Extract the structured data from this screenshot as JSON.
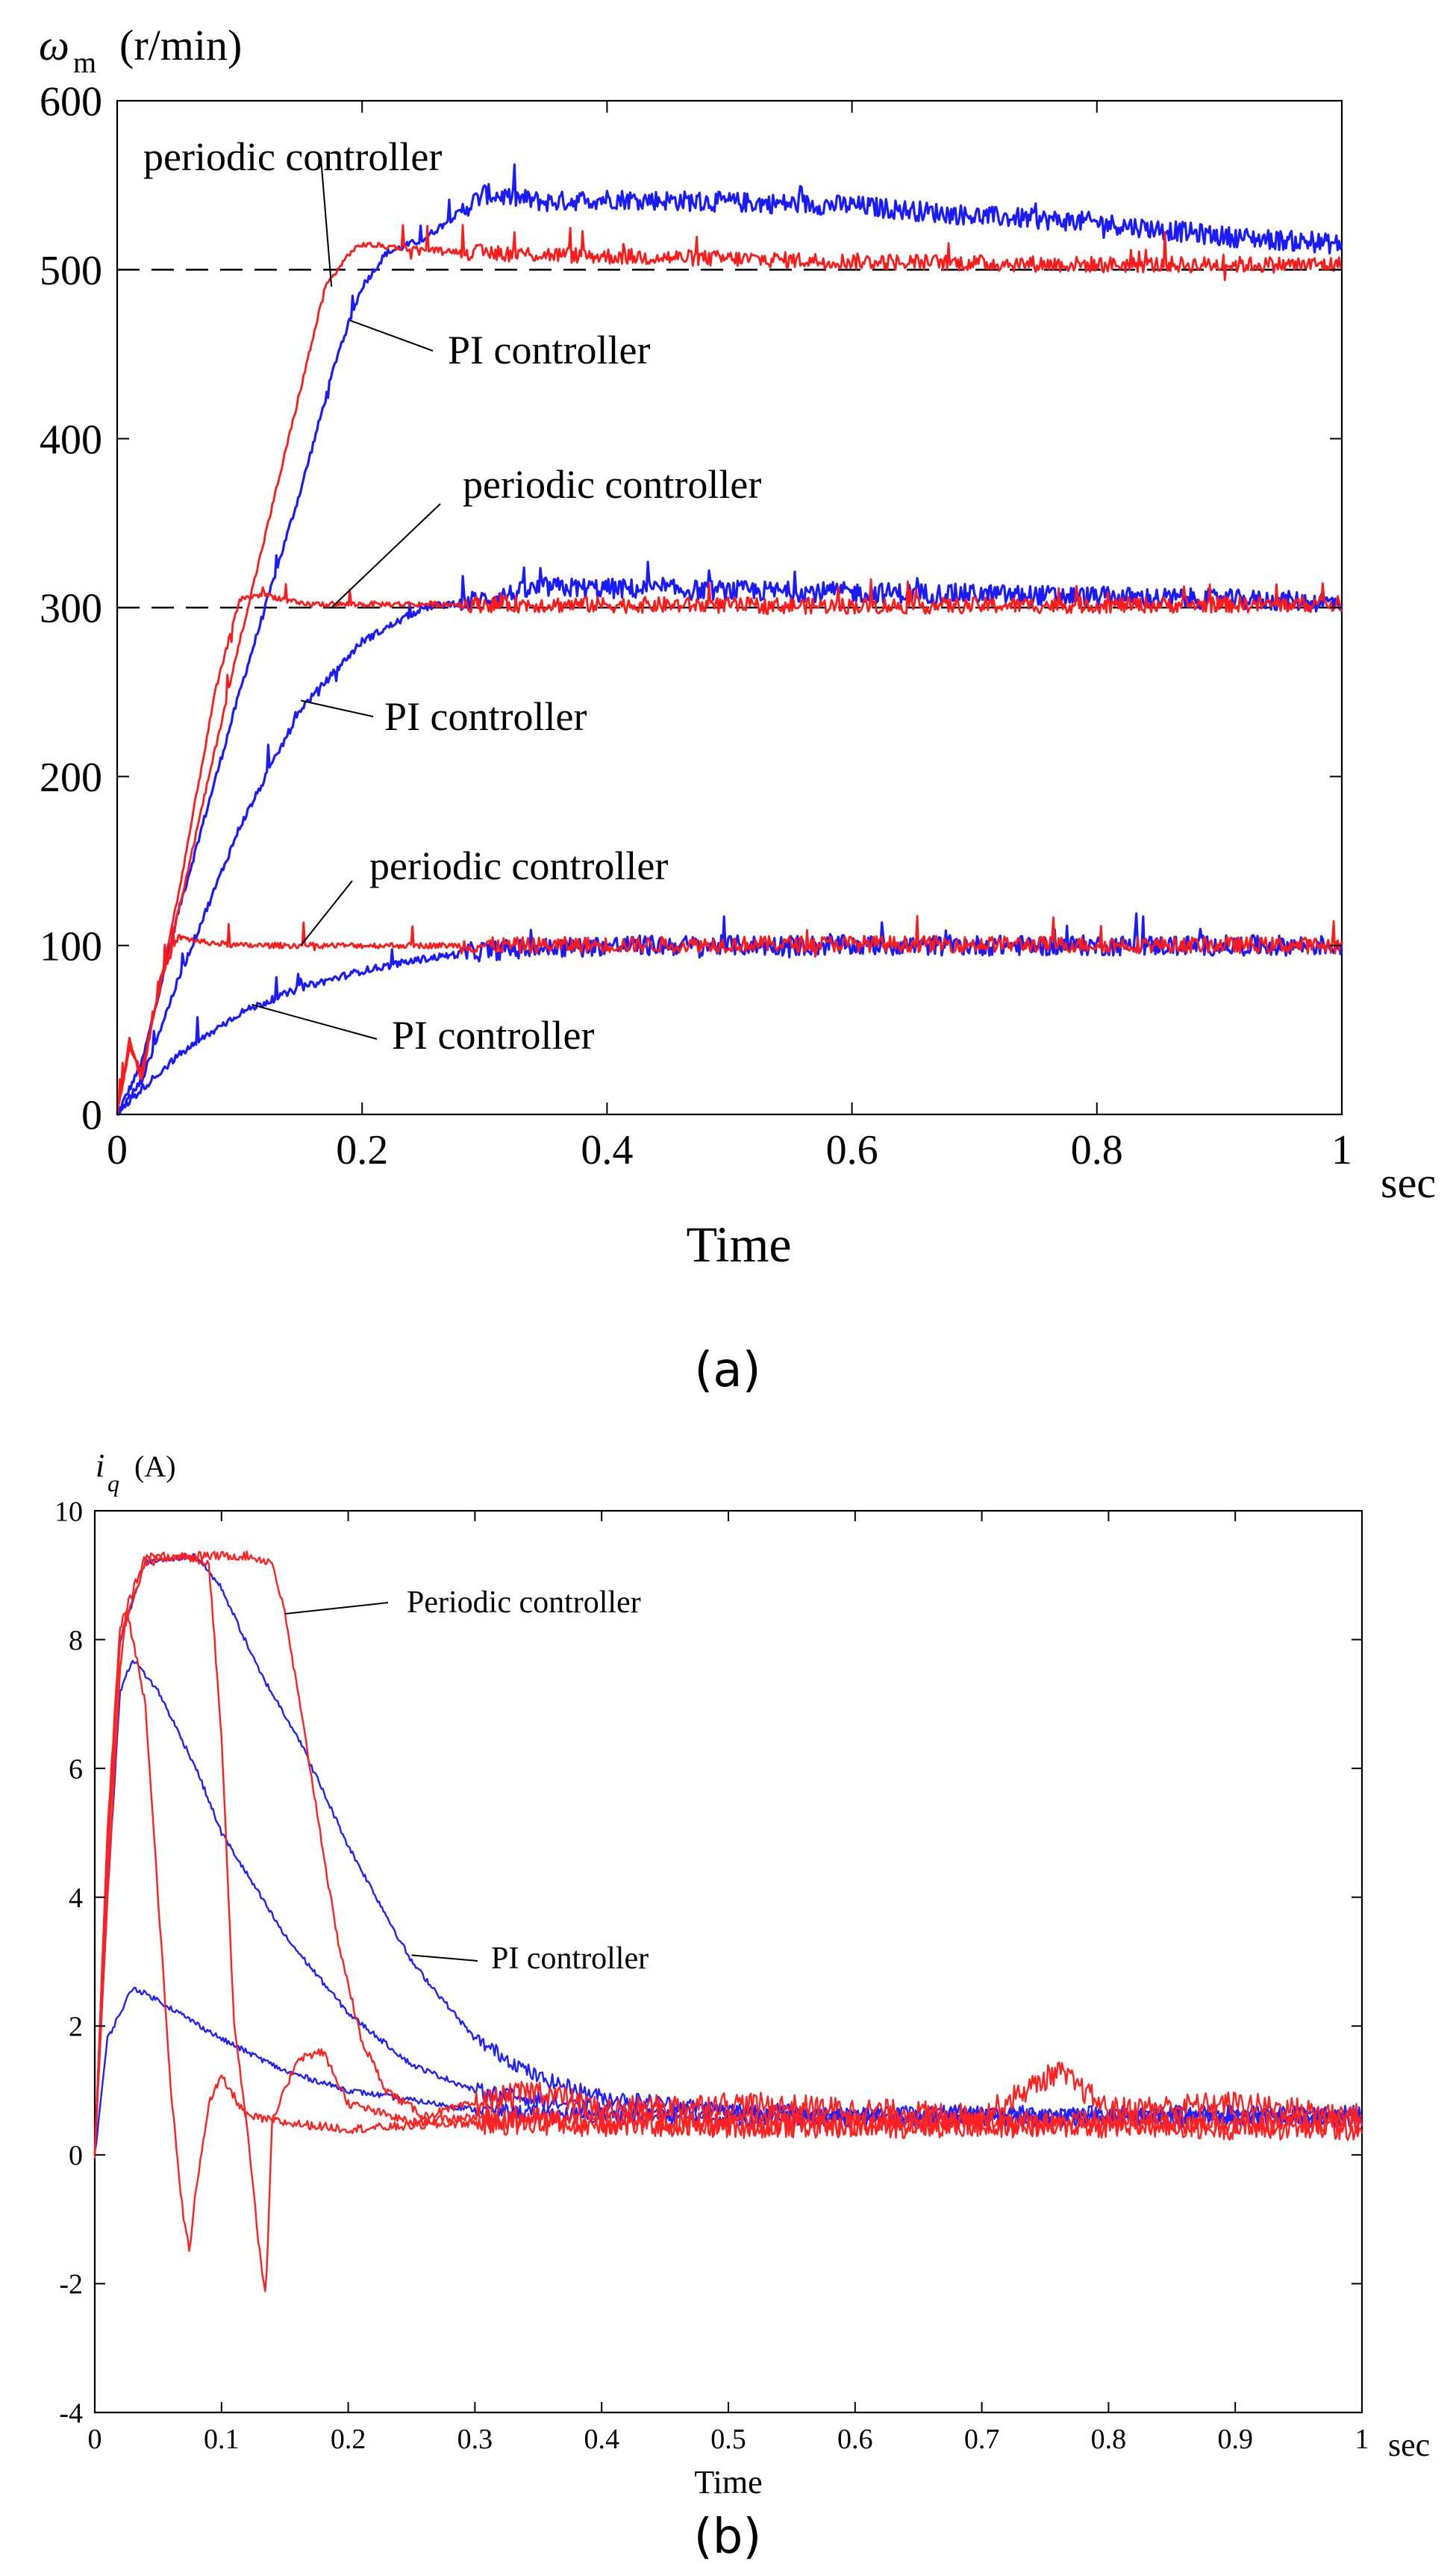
{
  "chart_data": [
    {
      "type": "line",
      "panel_label": "(a)",
      "ylabel_symbol": "ω",
      "ylabel_sub": "m",
      "ylabel_unit": "(r/min)",
      "xlabel": "Time",
      "x_unit": "sec",
      "xlim": [
        0,
        1
      ],
      "ylim": [
        0,
        600
      ],
      "xticks": [
        0,
        0.2,
        0.4,
        0.6,
        0.8,
        1
      ],
      "xtick_labels": [
        "0",
        "0.2",
        "0.4",
        "0.6",
        "0.8",
        "1"
      ],
      "yticks": [
        0,
        100,
        200,
        300,
        400,
        500,
        600
      ],
      "ytick_labels": [
        "0",
        "100",
        "200",
        "300",
        "400",
        "500",
        "600"
      ],
      "reference_levels": [
        500,
        300
      ],
      "series": [
        {
          "name": "PI controller (500 r/min)",
          "color": "#1a1aff",
          "points": [
            [
              0,
              0
            ],
            [
              0.02,
              30
            ],
            [
              0.05,
              120
            ],
            [
              0.1,
              250
            ],
            [
              0.15,
              370
            ],
            [
              0.18,
              450
            ],
            [
              0.2,
              490
            ],
            [
              0.22,
              510
            ],
            [
              0.25,
              518
            ],
            [
              0.3,
              545
            ],
            [
              0.35,
              540
            ],
            [
              0.4,
              542
            ],
            [
              0.5,
              540
            ],
            [
              0.6,
              538
            ],
            [
              0.7,
              532
            ],
            [
              0.8,
              528
            ],
            [
              0.9,
              520
            ],
            [
              1.0,
              515
            ]
          ]
        },
        {
          "name": "periodic controller (500 r/min)",
          "color": "#ff1a1a",
          "points": [
            [
              0,
              0
            ],
            [
              0.01,
              40
            ],
            [
              0.02,
              25
            ],
            [
              0.03,
              60
            ],
            [
              0.05,
              120
            ],
            [
              0.1,
              280
            ],
            [
              0.15,
              430
            ],
            [
              0.17,
              490
            ],
            [
              0.19,
              510
            ],
            [
              0.2,
              515
            ],
            [
              0.25,
              512
            ],
            [
              0.3,
              510
            ],
            [
              0.4,
              508
            ],
            [
              0.6,
              505
            ],
            [
              0.8,
              503
            ],
            [
              1.0,
              503
            ]
          ]
        },
        {
          "name": "PI controller (300 r/min)",
          "color": "#1a1aff",
          "points": [
            [
              0,
              0
            ],
            [
              0.02,
              20
            ],
            [
              0.05,
              80
            ],
            [
              0.1,
              170
            ],
            [
              0.15,
              240
            ],
            [
              0.2,
              280
            ],
            [
              0.25,
              300
            ],
            [
              0.3,
              305
            ],
            [
              0.35,
              312
            ],
            [
              0.5,
              310
            ],
            [
              0.7,
              308
            ],
            [
              0.9,
              305
            ],
            [
              1.0,
              303
            ]
          ]
        },
        {
          "name": "periodic controller (300 r/min)",
          "color": "#ff1a1a",
          "points": [
            [
              0,
              0
            ],
            [
              0.01,
              40
            ],
            [
              0.02,
              25
            ],
            [
              0.05,
              130
            ],
            [
              0.08,
              250
            ],
            [
              0.1,
              305
            ],
            [
              0.12,
              308
            ],
            [
              0.15,
              302
            ],
            [
              0.3,
              302
            ],
            [
              0.6,
              301
            ],
            [
              1.0,
              302
            ]
          ]
        },
        {
          "name": "PI controller (100 r/min)",
          "color": "#1a1aff",
          "points": [
            [
              0,
              0
            ],
            [
              0.02,
              15
            ],
            [
              0.05,
              35
            ],
            [
              0.1,
              60
            ],
            [
              0.15,
              75
            ],
            [
              0.2,
              85
            ],
            [
              0.25,
              92
            ],
            [
              0.3,
              97
            ],
            [
              0.4,
              100
            ],
            [
              0.6,
              100
            ],
            [
              1.0,
              100
            ]
          ]
        },
        {
          "name": "periodic controller (100 r/min)",
          "color": "#ff1a1a",
          "points": [
            [
              0,
              0
            ],
            [
              0.01,
              45
            ],
            [
              0.02,
              20
            ],
            [
              0.035,
              80
            ],
            [
              0.05,
              105
            ],
            [
              0.07,
              102
            ],
            [
              0.1,
              100
            ],
            [
              0.3,
              100
            ],
            [
              0.6,
              101
            ],
            [
              1.0,
              100
            ]
          ]
        }
      ],
      "annotations": [
        {
          "text": "periodic controller",
          "target": [
            0.175,
            490
          ]
        },
        {
          "text": "PI controller",
          "target": [
            0.19,
            470
          ]
        },
        {
          "text": "periodic controller",
          "target": [
            0.175,
            300
          ]
        },
        {
          "text": "PI controller",
          "target": [
            0.15,
            245
          ]
        },
        {
          "text": "periodic controller",
          "target": [
            0.15,
            100
          ]
        },
        {
          "text": "PI controller",
          "target": [
            0.11,
            65
          ]
        }
      ]
    },
    {
      "type": "line",
      "panel_label": "(b)",
      "ylabel_symbol": "i",
      "ylabel_sub": "q",
      "ylabel_unit": "(A)",
      "xlabel": "Time",
      "x_unit": "sec",
      "xlim": [
        0,
        1
      ],
      "ylim": [
        -4,
        10
      ],
      "xticks": [
        0,
        0.1,
        0.2,
        0.3,
        0.4,
        0.5,
        0.6,
        0.7,
        0.8,
        0.9,
        1
      ],
      "xtick_labels": [
        "0",
        "0.1",
        "0.2",
        "0.3",
        "0.4",
        "0.5",
        "0.6",
        "0.7",
        "0.8",
        "0.9",
        "1"
      ],
      "yticks": [
        -4,
        -2,
        0,
        2,
        4,
        6,
        8,
        10
      ],
      "ytick_labels": [
        "-4",
        "-2",
        "0",
        "2",
        "4",
        "6",
        "8",
        "10"
      ],
      "series": [
        {
          "name": "PI controller (500 r/min)",
          "color": "#2020ff",
          "points": [
            [
              0,
              0
            ],
            [
              0.01,
              5
            ],
            [
              0.02,
              8
            ],
            [
              0.04,
              9.2
            ],
            [
              0.08,
              9.3
            ],
            [
              0.1,
              8.8
            ],
            [
              0.13,
              7.5
            ],
            [
              0.16,
              6.5
            ],
            [
              0.2,
              4.8
            ],
            [
              0.25,
              3
            ],
            [
              0.3,
              1.8
            ],
            [
              0.35,
              1.2
            ],
            [
              0.4,
              0.9
            ],
            [
              0.5,
              0.7
            ],
            [
              0.6,
              0.65
            ],
            [
              0.8,
              0.65
            ],
            [
              1.0,
              0.65
            ]
          ]
        },
        {
          "name": "PI controller (300 r/min)",
          "color": "#2020ff",
          "points": [
            [
              0,
              0
            ],
            [
              0.01,
              4
            ],
            [
              0.02,
              7.2
            ],
            [
              0.03,
              7.7
            ],
            [
              0.05,
              7.2
            ],
            [
              0.08,
              6
            ],
            [
              0.1,
              5
            ],
            [
              0.15,
              3.4
            ],
            [
              0.2,
              2.2
            ],
            [
              0.25,
              1.4
            ],
            [
              0.3,
              1
            ],
            [
              0.4,
              0.7
            ],
            [
              0.6,
              0.6
            ],
            [
              1.0,
              0.6
            ]
          ]
        },
        {
          "name": "PI controller (100 r/min)",
          "color": "#2020ff",
          "points": [
            [
              0,
              0
            ],
            [
              0.01,
              1.8
            ],
            [
              0.03,
              2.6
            ],
            [
              0.05,
              2.4
            ],
            [
              0.1,
              1.8
            ],
            [
              0.15,
              1.3
            ],
            [
              0.2,
              1
            ],
            [
              0.3,
              0.7
            ],
            [
              0.4,
              0.6
            ],
            [
              0.6,
              0.55
            ],
            [
              1.0,
              0.55
            ]
          ]
        },
        {
          "name": "Periodic controller (500 r/min)",
          "color": "#ff2020",
          "points": [
            [
              0,
              0
            ],
            [
              0.01,
              5
            ],
            [
              0.02,
              8.2
            ],
            [
              0.04,
              9.3
            ],
            [
              0.08,
              9.3
            ],
            [
              0.12,
              9.3
            ],
            [
              0.14,
              9.2
            ],
            [
              0.15,
              8.4
            ],
            [
              0.17,
              6
            ],
            [
              0.19,
              3.5
            ],
            [
              0.21,
              1.8
            ],
            [
              0.23,
              1
            ],
            [
              0.26,
              0.6
            ],
            [
              0.3,
              0.8
            ],
            [
              0.35,
              1
            ],
            [
              0.4,
              0.7
            ],
            [
              0.5,
              0.8
            ],
            [
              0.6,
              0.7
            ],
            [
              0.7,
              0.6
            ],
            [
              0.76,
              1.3
            ],
            [
              0.8,
              0.7
            ],
            [
              0.9,
              0.8
            ],
            [
              1.0,
              0.6
            ]
          ]
        },
        {
          "name": "Periodic controller (300 r/min)",
          "color": "#ff2020",
          "points": [
            [
              0,
              0
            ],
            [
              0.01,
              4.5
            ],
            [
              0.02,
              8
            ],
            [
              0.04,
              9.2
            ],
            [
              0.07,
              9.3
            ],
            [
              0.09,
              9.2
            ],
            [
              0.1,
              6.5
            ],
            [
              0.11,
              2
            ],
            [
              0.12,
              0.5
            ],
            [
              0.13,
              -1.5
            ],
            [
              0.135,
              -2.2
            ],
            [
              0.14,
              0.5
            ],
            [
              0.16,
              1.5
            ],
            [
              0.18,
              1.6
            ],
            [
              0.2,
              0.8
            ],
            [
              0.25,
              0.5
            ],
            [
              0.3,
              0.6
            ],
            [
              0.4,
              0.5
            ],
            [
              0.6,
              0.5
            ],
            [
              1.0,
              0.5
            ]
          ]
        },
        {
          "name": "Periodic controller (100 r/min)",
          "color": "#ff2020",
          "points": [
            [
              0,
              0
            ],
            [
              0.01,
              4
            ],
            [
              0.02,
              7.5
            ],
            [
              0.025,
              8.5
            ],
            [
              0.04,
              7
            ],
            [
              0.05,
              4
            ],
            [
              0.06,
              1
            ],
            [
              0.07,
              -1
            ],
            [
              0.075,
              -1.5
            ],
            [
              0.08,
              -0.5
            ],
            [
              0.09,
              0.8
            ],
            [
              0.1,
              1.2
            ],
            [
              0.12,
              0.6
            ],
            [
              0.15,
              0.5
            ],
            [
              0.2,
              0.4
            ],
            [
              0.3,
              0.5
            ],
            [
              0.5,
              0.45
            ],
            [
              0.8,
              0.45
            ],
            [
              1.0,
              0.4
            ]
          ]
        }
      ],
      "annotations": [
        {
          "text": "Periodic controller",
          "target": [
            0.15,
            8.4
          ]
        },
        {
          "text": "PI controller",
          "target": [
            0.25,
            3.1
          ]
        }
      ]
    }
  ]
}
